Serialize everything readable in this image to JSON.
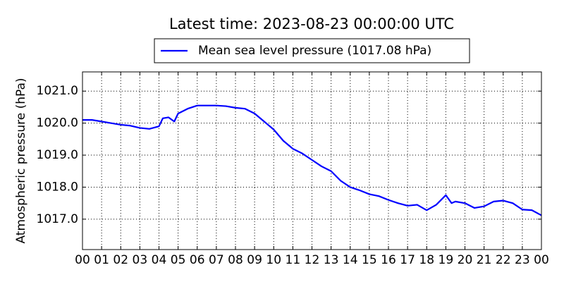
{
  "chart_data": {
    "type": "line",
    "title": "Latest time: 2023-08-23 00:00:00 UTC",
    "ylabel": "Atmospheric pressure (hPa)",
    "grid": true,
    "legend": "upper center",
    "x": [
      0,
      0.5,
      1,
      1.5,
      2,
      2.5,
      3,
      3.5,
      4,
      4.2,
      4.5,
      4.8,
      5,
      5.5,
      6,
      6.5,
      7,
      7.5,
      8,
      8.5,
      9,
      9.5,
      10,
      10.5,
      11,
      11.5,
      12,
      12.5,
      13,
      13.5,
      14,
      14.5,
      15,
      15.5,
      16,
      16.5,
      17,
      17.5,
      18,
      18.5,
      19,
      19.3,
      19.5,
      20,
      20.5,
      21,
      21.5,
      22,
      22.5,
      23,
      23.5,
      24
    ],
    "series": [
      {
        "name": "Mean sea level pressure (1017.08 hPa)",
        "color": "#0000ff",
        "values": [
          1020.1,
          1020.1,
          1020.05,
          1020.0,
          1019.95,
          1019.92,
          1019.85,
          1019.82,
          1019.9,
          1020.15,
          1020.18,
          1020.05,
          1020.3,
          1020.45,
          1020.55,
          1020.55,
          1020.55,
          1020.53,
          1020.48,
          1020.45,
          1020.3,
          1020.05,
          1019.8,
          1019.45,
          1019.2,
          1019.05,
          1018.85,
          1018.65,
          1018.5,
          1018.2,
          1018.0,
          1017.9,
          1017.78,
          1017.72,
          1017.6,
          1017.5,
          1017.42,
          1017.45,
          1017.28,
          1017.45,
          1017.75,
          1017.5,
          1017.55,
          1017.5,
          1017.35,
          1017.4,
          1017.55,
          1017.58,
          1017.5,
          1017.3,
          1017.28,
          1017.12
        ]
      }
    ],
    "xlim": [
      0,
      24
    ],
    "xticks": [
      {
        "value": 0,
        "label": "00"
      },
      {
        "value": 1,
        "label": "01"
      },
      {
        "value": 2,
        "label": "02"
      },
      {
        "value": 3,
        "label": "03"
      },
      {
        "value": 4,
        "label": "04"
      },
      {
        "value": 5,
        "label": "05"
      },
      {
        "value": 6,
        "label": "06"
      },
      {
        "value": 7,
        "label": "07"
      },
      {
        "value": 8,
        "label": "08"
      },
      {
        "value": 9,
        "label": "09"
      },
      {
        "value": 10,
        "label": "10"
      },
      {
        "value": 11,
        "label": "11"
      },
      {
        "value": 12,
        "label": "12"
      },
      {
        "value": 13,
        "label": "13"
      },
      {
        "value": 14,
        "label": "14"
      },
      {
        "value": 15,
        "label": "15"
      },
      {
        "value": 16,
        "label": "16"
      },
      {
        "value": 17,
        "label": "17"
      },
      {
        "value": 18,
        "label": "18"
      },
      {
        "value": 19,
        "label": "19"
      },
      {
        "value": 20,
        "label": "20"
      },
      {
        "value": 21,
        "label": "21"
      },
      {
        "value": 22,
        "label": "22"
      },
      {
        "value": 23,
        "label": "23"
      },
      {
        "value": 24,
        "label": "00"
      }
    ],
    "ylim": [
      1016.05,
      1021.6
    ],
    "yticks": [
      {
        "value": 1017,
        "label": "1017.0"
      },
      {
        "value": 1018,
        "label": "1018.0"
      },
      {
        "value": 1019,
        "label": "1019.0"
      },
      {
        "value": 1020,
        "label": "1020.0"
      },
      {
        "value": 1021,
        "label": "1021.0"
      }
    ]
  }
}
